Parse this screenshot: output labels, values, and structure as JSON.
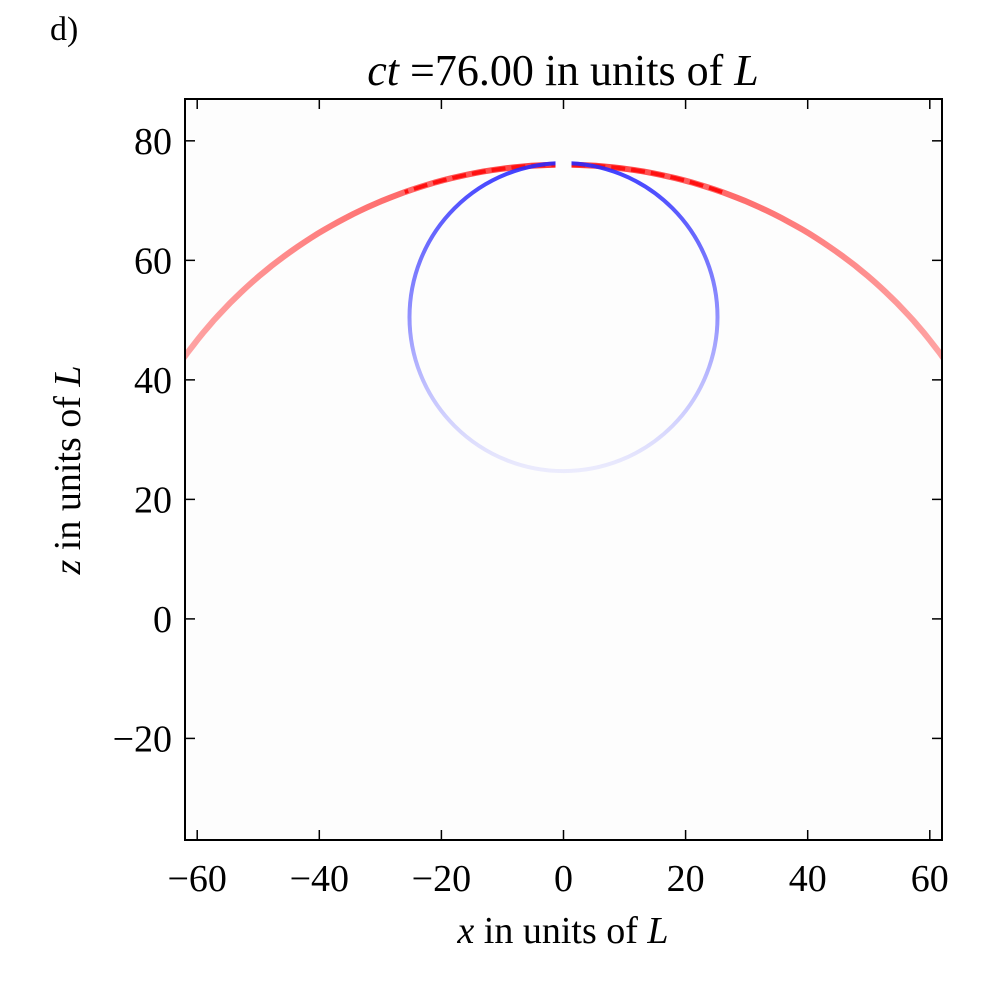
{
  "panel_label": "d)",
  "title": {
    "var": "ct",
    "text": " =76.00 in units of ",
    "unit": "L"
  },
  "xlabel": {
    "var": "x",
    "text": " in units of ",
    "unit": "L"
  },
  "ylabel": {
    "var": "z",
    "text": " in units of ",
    "unit": "L"
  },
  "chart_data": {
    "type": "heatmap",
    "xlim": [
      -62,
      62
    ],
    "ylim": [
      -37,
      87
    ],
    "xticks": [
      -60,
      -40,
      -20,
      0,
      20,
      40,
      60
    ],
    "yticks": [
      -20,
      0,
      20,
      40,
      60,
      80
    ],
    "xtick_labels": [
      "−60",
      "−40",
      "−20",
      "0",
      "20",
      "40",
      "60"
    ],
    "ytick_labels": [
      "−20",
      "0",
      "20",
      "40",
      "60",
      "80"
    ],
    "colormap": "bwr",
    "colors": {
      "positive": "#ff2020",
      "negative": "#2020ff",
      "background": "#fdfdfd"
    },
    "features": [
      {
        "kind": "outer-wavefront",
        "sign": "positive",
        "center": [
          0,
          0
        ],
        "radius": 76,
        "note_style": "red arc"
      },
      {
        "kind": "inner-ring",
        "sign": "negative",
        "center": [
          0,
          50.5
        ],
        "radius": 25.5,
        "note_style": "blue ring, fading toward bottom"
      }
    ],
    "grid": false
  }
}
